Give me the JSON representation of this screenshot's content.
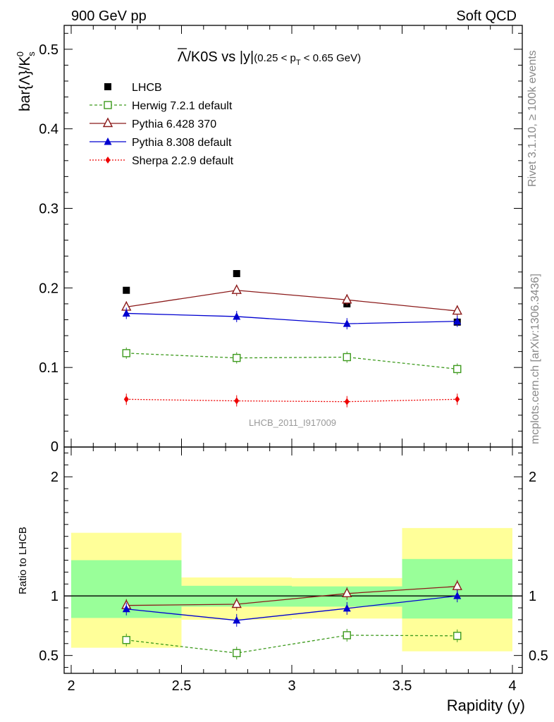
{
  "header": {
    "left": "900 GeV pp",
    "right": "Soft QCD"
  },
  "side_labels": {
    "rivet": "Rivet 3.1.10, ≥ 100k events",
    "mcplots": "mcplots.cern.ch [arXiv:1306.3436]"
  },
  "title": {
    "lambda_bar": "Λ",
    "main": "/K0S vs |y|",
    "cut_prefix": "(0.25 < p",
    "cut_sub": "T",
    "cut_suffix": " < 0.65 GeV)"
  },
  "watermark": "LHCB_2011_I917009",
  "axis": {
    "ylabel_main": "bar{Λ}/K",
    "ylabel_main_sub": "s",
    "ylabel_main_sup": "0",
    "ylabel_ratio": "Ratio to LHCB",
    "xlabel": "Rapidity (y)"
  },
  "chart_data": [
    {
      "type": "scatter",
      "xlim": [
        2,
        4
      ],
      "ylim": [
        0,
        0.53
      ],
      "yticks": [
        0.1,
        0.2,
        0.3,
        0.4,
        0.5
      ],
      "ytick_labels": [
        "0.1",
        "0.2",
        "0.3",
        "0.4",
        "0.5"
      ],
      "zero_label": "0",
      "x": [
        2.25,
        2.75,
        3.25,
        3.75
      ],
      "series": [
        {
          "name": "LHCB",
          "values": [
            0.197,
            0.218,
            0.18,
            0.157
          ],
          "color": "#000000",
          "marker": "square",
          "line": "none"
        },
        {
          "name": "Herwig 7.2.1 default",
          "values": [
            0.118,
            0.112,
            0.113,
            0.098
          ],
          "color": "#3d9a1d",
          "marker": "open-square",
          "line": "dashed"
        },
        {
          "name": "Pythia 6.428 370",
          "values": [
            0.176,
            0.197,
            0.185,
            0.171
          ],
          "color": "#8b1a1a",
          "marker": "open-triangle",
          "line": "solid"
        },
        {
          "name": "Pythia 8.308 default",
          "values": [
            0.168,
            0.164,
            0.155,
            0.158
          ],
          "color": "#0000d0",
          "marker": "triangle",
          "line": "solid"
        },
        {
          "name": "Sherpa 2.2.9 default",
          "values": [
            0.06,
            0.058,
            0.057,
            0.06
          ],
          "color": "#ee0000",
          "marker": "diamond",
          "line": "dotted"
        }
      ]
    },
    {
      "type": "scatter",
      "ylabel": "Ratio to LHCB",
      "xlabel": "Rapidity (y)",
      "xlim": [
        2,
        4
      ],
      "ylim": [
        0.35,
        2.25
      ],
      "yticks": [
        0.5,
        1,
        2
      ],
      "ytick_labels": [
        "0.5",
        "1",
        "2"
      ],
      "xticks": [
        2,
        2.5,
        3,
        3.5,
        4
      ],
      "xtick_labels": [
        "2",
        "2.5",
        "3",
        "3.5",
        "4"
      ],
      "bands": [
        {
          "x": [
            2.0,
            2.5
          ],
          "stat": [
            0.815,
            1.3
          ],
          "total": [
            0.565,
            1.53
          ]
        },
        {
          "x": [
            2.5,
            3.0
          ],
          "stat": [
            0.91,
            1.085
          ],
          "total": [
            0.8,
            1.155
          ]
        },
        {
          "x": [
            3.0,
            3.5
          ],
          "stat": [
            0.91,
            1.08
          ],
          "total": [
            0.81,
            1.15
          ]
        },
        {
          "x": [
            3.5,
            4.0
          ],
          "stat": [
            0.81,
            1.31
          ],
          "total": [
            0.535,
            1.57
          ]
        }
      ],
      "band_colors": {
        "stat": "#99ff99",
        "total": "#ffff99"
      },
      "x": [
        2.25,
        2.75,
        3.25,
        3.75
      ],
      "series": [
        {
          "name": "Herwig 7.2.1 default",
          "values": [
            0.63,
            0.52,
            0.67,
            0.665
          ],
          "color": "#3d9a1d",
          "marker": "open-square",
          "line": "dashed"
        },
        {
          "name": "Pythia 6.428 370",
          "values": [
            0.92,
            0.93,
            1.02,
            1.08
          ],
          "color": "#8b1a1a",
          "marker": "open-triangle",
          "line": "solid"
        },
        {
          "name": "Pythia 8.308 default",
          "values": [
            0.89,
            0.795,
            0.895,
            1.0
          ],
          "color": "#0000d0",
          "marker": "triangle",
          "line": "solid"
        }
      ]
    }
  ]
}
